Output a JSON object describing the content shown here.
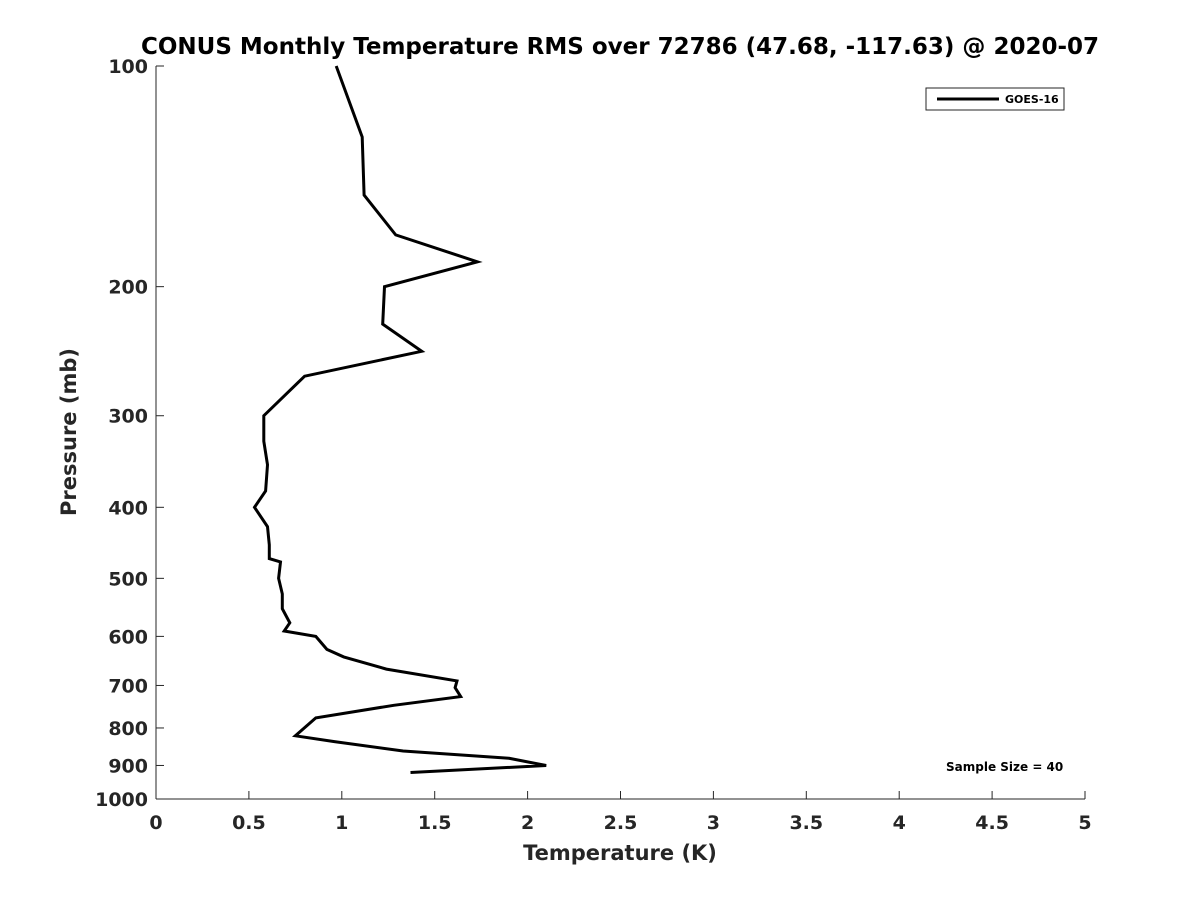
{
  "chart_data": {
    "type": "line",
    "title": "CONUS Monthly Temperature RMS over 72786 (47.68, -117.63) @ 2020-07",
    "xlabel": "Temperature (K)",
    "ylabel": "Pressure (mb)",
    "xlim": [
      0,
      5
    ],
    "ylim": [
      100,
      1000
    ],
    "yscale": "log",
    "yreversed": true,
    "grid": false,
    "xticks": [
      {
        "value": 0,
        "label": "0"
      },
      {
        "value": 0.5,
        "label": "0.5"
      },
      {
        "value": 1,
        "label": "1"
      },
      {
        "value": 1.5,
        "label": "1.5"
      },
      {
        "value": 2,
        "label": "2"
      },
      {
        "value": 2.5,
        "label": "2.5"
      },
      {
        "value": 3,
        "label": "3"
      },
      {
        "value": 3.5,
        "label": "3.5"
      },
      {
        "value": 4,
        "label": "4"
      },
      {
        "value": 4.5,
        "label": "4.5"
      },
      {
        "value": 5,
        "label": "5"
      }
    ],
    "yticks": [
      {
        "value": 100,
        "label": "100"
      },
      {
        "value": 200,
        "label": "200"
      },
      {
        "value": 300,
        "label": "300"
      },
      {
        "value": 400,
        "label": "400"
      },
      {
        "value": 500,
        "label": "500"
      },
      {
        "value": 600,
        "label": "600"
      },
      {
        "value": 700,
        "label": "700"
      },
      {
        "value": 800,
        "label": "800"
      },
      {
        "value": 900,
        "label": "900"
      },
      {
        "value": 1000,
        "label": "1000"
      }
    ],
    "legend_position": "top-right",
    "series": [
      {
        "name": "GOES-16",
        "color": "#000000",
        "points": [
          {
            "x": 0.97,
            "y": 100
          },
          {
            "x": 1.11,
            "y": 125
          },
          {
            "x": 1.12,
            "y": 150
          },
          {
            "x": 1.29,
            "y": 170
          },
          {
            "x": 1.73,
            "y": 185
          },
          {
            "x": 1.23,
            "y": 200
          },
          {
            "x": 1.22,
            "y": 225
          },
          {
            "x": 1.43,
            "y": 245
          },
          {
            "x": 0.8,
            "y": 265
          },
          {
            "x": 0.58,
            "y": 300
          },
          {
            "x": 0.58,
            "y": 325
          },
          {
            "x": 0.6,
            "y": 350
          },
          {
            "x": 0.59,
            "y": 380
          },
          {
            "x": 0.53,
            "y": 400
          },
          {
            "x": 0.6,
            "y": 425
          },
          {
            "x": 0.61,
            "y": 450
          },
          {
            "x": 0.61,
            "y": 470
          },
          {
            "x": 0.67,
            "y": 475
          },
          {
            "x": 0.66,
            "y": 500
          },
          {
            "x": 0.68,
            "y": 525
          },
          {
            "x": 0.68,
            "y": 550
          },
          {
            "x": 0.72,
            "y": 575
          },
          {
            "x": 0.69,
            "y": 590
          },
          {
            "x": 0.86,
            "y": 600
          },
          {
            "x": 0.92,
            "y": 625
          },
          {
            "x": 1.01,
            "y": 640
          },
          {
            "x": 1.24,
            "y": 665
          },
          {
            "x": 1.62,
            "y": 690
          },
          {
            "x": 1.61,
            "y": 705
          },
          {
            "x": 1.64,
            "y": 725
          },
          {
            "x": 1.28,
            "y": 745
          },
          {
            "x": 0.86,
            "y": 775
          },
          {
            "x": 0.75,
            "y": 820
          },
          {
            "x": 0.96,
            "y": 835
          },
          {
            "x": 1.33,
            "y": 860
          },
          {
            "x": 1.9,
            "y": 880
          },
          {
            "x": 2.1,
            "y": 900
          },
          {
            "x": 1.37,
            "y": 920
          }
        ]
      }
    ],
    "annotations": [
      {
        "text": "Sample Size = 40",
        "position": "bottom-right"
      }
    ]
  }
}
